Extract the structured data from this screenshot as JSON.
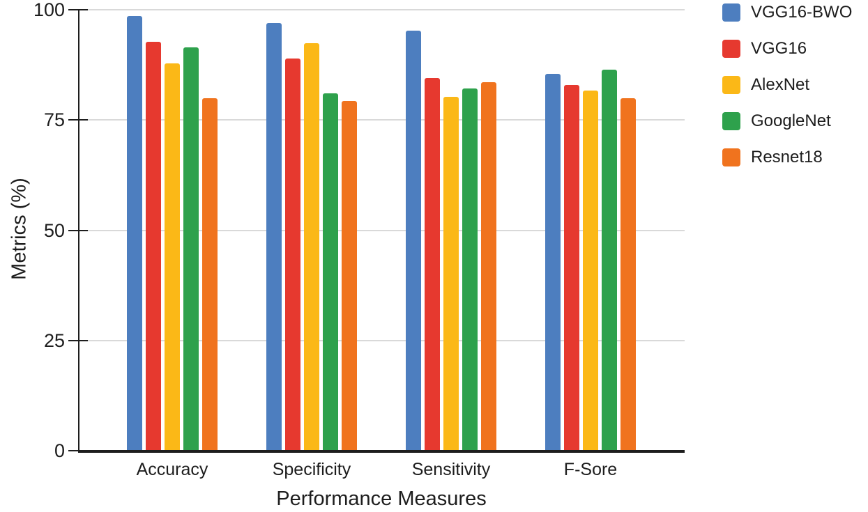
{
  "chart_data": {
    "type": "bar",
    "title": "",
    "xlabel": "Performance Measures",
    "ylabel": "Metrics (%)",
    "categories": [
      "Accuracy",
      "Specificity",
      "Sensitivity",
      "F-Sore"
    ],
    "series": [
      {
        "name": "VGG16-BWO",
        "color": "#4d7ebf",
        "values": [
          98.6,
          97.0,
          95.3,
          85.4
        ]
      },
      {
        "name": "VGG16",
        "color": "#e6392f",
        "values": [
          92.7,
          88.9,
          84.5,
          82.9
        ]
      },
      {
        "name": "AlexNet",
        "color": "#fbb817",
        "values": [
          87.8,
          92.4,
          80.3,
          81.7
        ]
      },
      {
        "name": "GoogleNet",
        "color": "#2ea14c",
        "values": [
          91.5,
          81.0,
          82.2,
          86.4
        ]
      },
      {
        "name": "Resnet18",
        "color": "#f0731e",
        "values": [
          80.0,
          79.3,
          83.6,
          79.9
        ]
      }
    ],
    "ylim": [
      0,
      100
    ],
    "yticks": [
      0,
      25,
      50,
      75,
      100
    ],
    "grid": "horizontal",
    "legend_position": "top-right-outside",
    "axis_color": "#1d1d1d",
    "gridline_color": "#d9d9d9",
    "background_color": "#ffffff"
  }
}
